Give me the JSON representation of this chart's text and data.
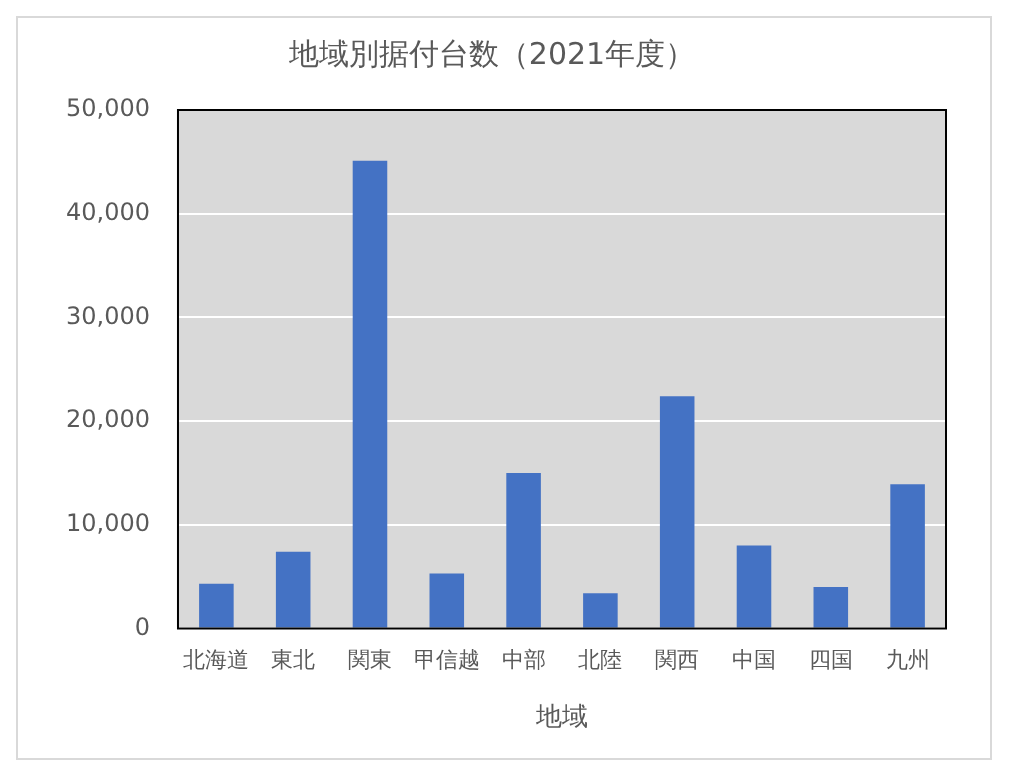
{
  "chart_data": {
    "type": "bar",
    "title": "地域別据付台数（2021年度）",
    "xlabel": "地域",
    "categories": [
      "北海道",
      "東北",
      "関東",
      "甲信越",
      "中部",
      "北陸",
      "関西",
      "中国",
      "四国",
      "九州"
    ],
    "values": [
      4300,
      7400,
      45100,
      5300,
      15000,
      3400,
      22400,
      8000,
      4000,
      13900
    ],
    "color": "#4472c4",
    "ylim": [
      0,
      50000
    ],
    "yticks": [
      {
        "value": 0,
        "label": "0"
      },
      {
        "value": 10000,
        "label": "10,000"
      },
      {
        "value": 20000,
        "label": "20,000"
      },
      {
        "value": 30000,
        "label": "30,000"
      },
      {
        "value": 40000,
        "label": "40,000"
      },
      {
        "value": 50000,
        "label": "50,000"
      }
    ],
    "grid": "y"
  }
}
